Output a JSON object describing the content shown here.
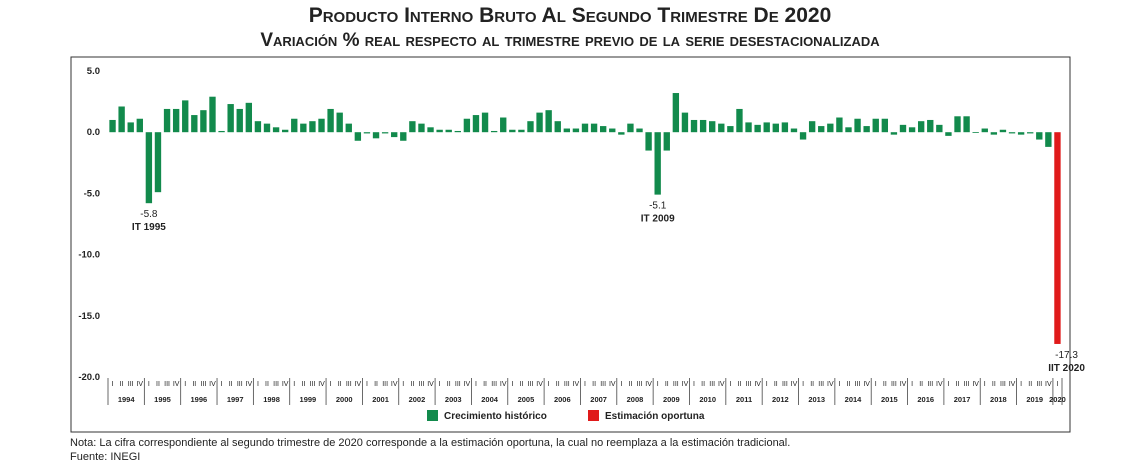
{
  "title": "Producto Interno Bruto Al Segundo Trimestre De 2020",
  "subtitle": "Variación % real respecto al trimestre previo de la serie desestacionalizada",
  "note": "Nota: La cifra correspondiente al segundo trimestre de 2020 corresponde a la estimación oportuna, la cual no reemplaza a la estimación tradicional.",
  "source": "Fuente: INEGI",
  "colors": {
    "historic": "#128a4c",
    "estimate": "#e01a1a"
  },
  "chart_data": {
    "type": "bar",
    "title": "Producto Interno Bruto Al Segundo Trimestre De 2020",
    "subtitle": "Variación % real respecto al trimestre previo de la serie desestacionalizada",
    "ylim": [
      -20,
      5
    ],
    "yticks": [
      "5.0",
      "0.0",
      "-5.0",
      "-10.0",
      "-15.0",
      "-20.0"
    ],
    "ytick_values": [
      5,
      0,
      -5,
      -10,
      -15,
      -20
    ],
    "quarter_labels": [
      "I",
      "II",
      "III",
      "IV"
    ],
    "years": [
      "1994",
      "1995",
      "1996",
      "1997",
      "1998",
      "1999",
      "2000",
      "2001",
      "2002",
      "2003",
      "2004",
      "2005",
      "2006",
      "2007",
      "2008",
      "2009",
      "2010",
      "2011",
      "2012",
      "2013",
      "2014",
      "2015",
      "2016",
      "2017",
      "2018",
      "2019",
      "2020"
    ],
    "series": [
      {
        "name": "Crecimiento histórico",
        "color": "#128a4c",
        "values": [
          1.0,
          2.1,
          0.8,
          1.1,
          -5.8,
          -4.9,
          1.9,
          1.9,
          2.6,
          1.4,
          1.8,
          2.9,
          0.1,
          2.3,
          1.9,
          2.4,
          0.9,
          0.7,
          0.4,
          0.2,
          1.1,
          0.7,
          0.9,
          1.1,
          1.9,
          1.6,
          0.7,
          -0.7,
          -0.1,
          -0.5,
          -0.1,
          -0.4,
          -0.7,
          0.9,
          0.7,
          0.4,
          0.2,
          0.2,
          0.1,
          1.1,
          1.4,
          1.6,
          0.1,
          1.2,
          0.2,
          0.2,
          0.9,
          1.6,
          1.8,
          0.9,
          0.3,
          0.3,
          0.7,
          0.7,
          0.5,
          0.3,
          -0.2,
          0.7,
          0.3,
          -1.5,
          -5.1,
          -1.5,
          3.2,
          1.6,
          1.0,
          1.0,
          0.9,
          0.7,
          0.5,
          1.9,
          0.8,
          0.6,
          0.8,
          0.7,
          0.8,
          0.3,
          -0.6,
          0.9,
          0.5,
          0.7,
          1.2,
          0.4,
          1.1,
          0.5,
          1.1,
          1.1,
          -0.2,
          0.6,
          0.4,
          0.9,
          1.0,
          0.6,
          -0.3,
          1.3,
          1.3,
          0.0,
          0.3,
          -0.2,
          0.2,
          -0.1,
          -0.2,
          -0.1,
          -0.6,
          -1.2
        ]
      },
      {
        "name": "Estimación oportuna",
        "color": "#e01a1a",
        "values": [
          -17.3
        ]
      }
    ],
    "annotations": [
      {
        "index": 4,
        "value": "-5.8",
        "label": "IT 1995"
      },
      {
        "index": 60,
        "value": "-5.1",
        "label": "IT 2009"
      },
      {
        "index": 105,
        "value": "-17.3",
        "label": "IIT 2020"
      }
    ],
    "legend": {
      "position": "bottom-center",
      "items": [
        "Crecimiento histórico",
        "Estimación oportuna"
      ]
    }
  }
}
